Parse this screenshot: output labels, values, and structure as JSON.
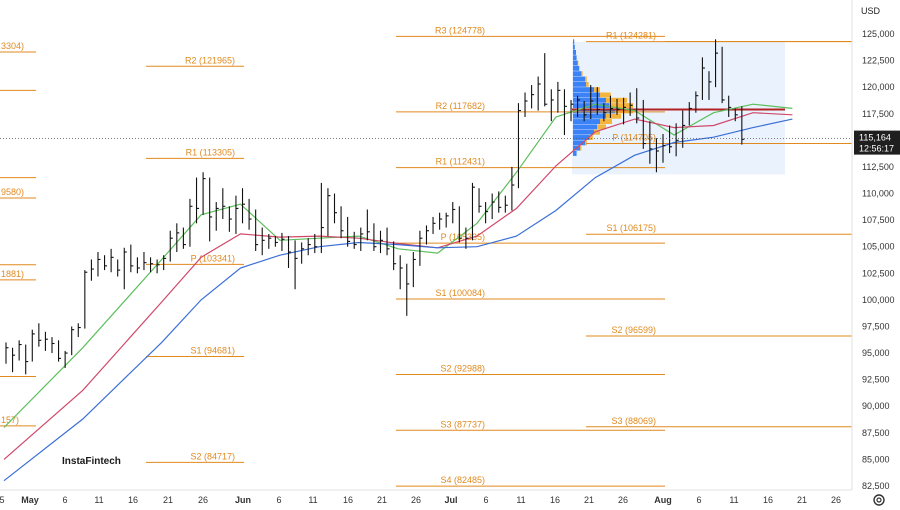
{
  "currency_label": "USD",
  "watermark": "InstaFintech",
  "settings_icon": "gear-icon",
  "current_price": {
    "value": "115,164",
    "countdown": "12:56:17",
    "price": 115164
  },
  "colors": {
    "pivot": "#e08a1e",
    "ma_fast": "#5cbf5c",
    "ma_mid": "#d0486a",
    "ma_slow": "#3a6fd8",
    "candle": "#111111",
    "profile_blue": "#3b82f6",
    "profile_orange": "#f5b43c",
    "poc": "#b22222",
    "box": "#dbeafb"
  },
  "chart_data": {
    "type": "ohlc",
    "y_ticks": [
      "125,000",
      "122,500",
      "120,000",
      "117,500",
      "115,000",
      "112,500",
      "110,000",
      "107,500",
      "105,000",
      "102,500",
      "100,000",
      "97,500",
      "95,000",
      "92,500",
      "90,000",
      "87,500",
      "85,000",
      "82,500"
    ],
    "ylim": [
      82000,
      127000
    ],
    "x_ticks": [
      "5",
      "May",
      "6",
      "11",
      "16",
      "21",
      "26",
      "Jun",
      "6",
      "11",
      "16",
      "21",
      "26",
      "Jul",
      "6",
      "11",
      "16",
      "21",
      "26",
      "Aug",
      "6",
      "11",
      "16",
      "21",
      "26"
    ],
    "month_ticks": [
      "May",
      "Jun",
      "Jul",
      "Aug"
    ],
    "pivot_levels": [
      {
        "label": "3304)",
        "value": 123304,
        "period": "may-left"
      },
      {
        "label": "",
        "value": 119700,
        "period": "may-left"
      },
      {
        "label": "",
        "value": 111500,
        "period": "may-left"
      },
      {
        "label": "9580)",
        "value": 109580,
        "period": "may-left"
      },
      {
        "label": "",
        "value": 103300,
        "period": "may-left"
      },
      {
        "label": "1881)",
        "value": 101881,
        "period": "may-left"
      },
      {
        "label": "",
        "value": 92800,
        "period": "may-left"
      },
      {
        "label": "157)",
        "value": 88157,
        "period": "may-left"
      },
      {
        "label": "R2 (121965)",
        "value": 121965,
        "period": "jun"
      },
      {
        "label": "R1 (113305)",
        "value": 113305,
        "period": "jun"
      },
      {
        "label": "P (103341)",
        "value": 103341,
        "period": "jun"
      },
      {
        "label": "S1 (94681)",
        "value": 94681,
        "period": "jun"
      },
      {
        "label": "S2 (84717)",
        "value": 84717,
        "period": "jun"
      },
      {
        "label": "R3 (124778)",
        "value": 124778,
        "period": "jul"
      },
      {
        "label": "R2 (117682)",
        "value": 117682,
        "period": "jul"
      },
      {
        "label": "R1 (112431)",
        "value": 112431,
        "period": "jul"
      },
      {
        "label": "P (105335)",
        "value": 105335,
        "period": "jul"
      },
      {
        "label": "S1 (100084)",
        "value": 100084,
        "period": "jul"
      },
      {
        "label": "S2 (92988)",
        "value": 92988,
        "period": "jul"
      },
      {
        "label": "S3 (87737)",
        "value": 87737,
        "period": "jul"
      },
      {
        "label": "S4 (82485)",
        "value": 82485,
        "period": "jul"
      },
      {
        "label": "",
        "value": 124300,
        "period": "aug-full"
      },
      {
        "label": "R1 (124281)",
        "value": 124281,
        "period": "aug"
      },
      {
        "label": "P (114705)",
        "value": 114705,
        "period": "aug"
      },
      {
        "label": "S1 (106175)",
        "value": 106175,
        "period": "aug"
      },
      {
        "label": "S2 (96599)",
        "value": 96599,
        "period": "aug"
      },
      {
        "label": "S3 (88069)",
        "value": 88069,
        "period": "aug"
      }
    ],
    "bars": [
      [
        96000,
        94000,
        95500
      ],
      [
        95500,
        93200,
        94800
      ],
      [
        96200,
        94300,
        95800
      ],
      [
        95800,
        93000,
        94200
      ],
      [
        97200,
        94200,
        96800
      ],
      [
        97800,
        95600,
        96200
      ],
      [
        97000,
        95200,
        96300
      ],
      [
        96500,
        95000,
        95900
      ],
      [
        96200,
        94200,
        94500
      ],
      [
        95200,
        93600,
        95000
      ],
      [
        97500,
        94800,
        97200
      ],
      [
        97800,
        96500,
        97400
      ],
      [
        102800,
        97300,
        102600
      ],
      [
        103800,
        101800,
        102900
      ],
      [
        104500,
        102200,
        103800
      ],
      [
        104200,
        102800,
        103200
      ],
      [
        104800,
        102600,
        104000
      ],
      [
        103800,
        102200,
        102800
      ],
      [
        104900,
        101000,
        104500
      ],
      [
        105200,
        102600,
        103200
      ],
      [
        104000,
        102500,
        103000
      ],
      [
        104500,
        102800,
        103500
      ],
      [
        104000,
        102600,
        103400
      ],
      [
        103800,
        102500,
        103300
      ],
      [
        104200,
        102800,
        103900
      ],
      [
        106500,
        103600,
        105800
      ],
      [
        107200,
        104500,
        106300
      ],
      [
        106800,
        104800,
        105200
      ],
      [
        109500,
        105000,
        108800
      ],
      [
        111500,
        107200,
        108600
      ],
      [
        112000,
        108000,
        111400
      ],
      [
        111500,
        105500,
        107800
      ],
      [
        109200,
        106500,
        108600
      ],
      [
        110500,
        107600,
        108800
      ],
      [
        108800,
        106400,
        107600
      ],
      [
        109800,
        106200,
        108600
      ],
      [
        110500,
        107200,
        109000
      ],
      [
        109500,
        106600,
        107600
      ],
      [
        108500,
        104600,
        105200
      ],
      [
        106800,
        104200,
        105600
      ],
      [
        106200,
        104800,
        105800
      ],
      [
        106000,
        105000,
        105400
      ],
      [
        106300,
        104600,
        105700
      ],
      [
        106000,
        103000,
        104500
      ],
      [
        105600,
        101000,
        103900
      ],
      [
        105400,
        103400,
        104800
      ],
      [
        105800,
        104200,
        105200
      ],
      [
        106200,
        104400,
        105000
      ],
      [
        111000,
        104400,
        106800
      ],
      [
        110500,
        106000,
        109800
      ],
      [
        110000,
        107200,
        108200
      ],
      [
        108800,
        105800,
        106500
      ],
      [
        107800,
        105000,
        105500
      ],
      [
        106400,
        104800,
        105200
      ],
      [
        106800,
        104600,
        106200
      ],
      [
        108500,
        105600,
        106400
      ],
      [
        107200,
        104600,
        105000
      ],
      [
        106500,
        104400,
        105600
      ],
      [
        106800,
        104200,
        104800
      ],
      [
        105500,
        102800,
        103400
      ],
      [
        104200,
        101000,
        103000
      ],
      [
        103400,
        98500,
        101500
      ],
      [
        104500,
        101200,
        103800
      ],
      [
        106500,
        103200,
        105800
      ],
      [
        107000,
        105200,
        106500
      ],
      [
        107800,
        106200,
        107200
      ],
      [
        108200,
        106600,
        107600
      ],
      [
        108200,
        106800,
        107900
      ],
      [
        109200,
        107200,
        108500
      ],
      [
        108800,
        105400,
        105800
      ],
      [
        106800,
        104800,
        105800
      ],
      [
        111000,
        105600,
        110600
      ],
      [
        110500,
        108200,
        108800
      ],
      [
        109200,
        107200,
        108300
      ],
      [
        110000,
        107600,
        109200
      ],
      [
        110200,
        108200,
        108700
      ],
      [
        109800,
        108200,
        108900
      ],
      [
        112500,
        108400,
        110800
      ],
      [
        118500,
        110500,
        117800
      ],
      [
        119500,
        117200,
        118700
      ],
      [
        120200,
        118000,
        119300
      ],
      [
        121000,
        117800,
        120300
      ],
      [
        123200,
        118200,
        118400
      ],
      [
        119800,
        116800,
        118800
      ],
      [
        120500,
        117600,
        119700
      ],
      [
        119800,
        115500,
        118200
      ],
      [
        118800,
        116800,
        118400
      ],
      [
        119200,
        117200,
        118800
      ],
      [
        118700,
        116800,
        117400
      ],
      [
        120200,
        117000,
        118700
      ],
      [
        120000,
        117400,
        117900
      ],
      [
        118500,
        116800,
        117600
      ],
      [
        119200,
        117100,
        118000
      ],
      [
        118900,
        117400,
        117900
      ],
      [
        119000,
        116500,
        118100
      ],
      [
        119500,
        117300,
        118300
      ],
      [
        119900,
        116600,
        117100
      ],
      [
        118800,
        114200,
        114700
      ],
      [
        116800,
        112800,
        114200
      ],
      [
        115200,
        112000,
        114000
      ],
      [
        115600,
        112900,
        114500
      ],
      [
        116400,
        113800,
        114400
      ],
      [
        116600,
        113500,
        115000
      ],
      [
        117800,
        114300,
        116400
      ],
      [
        118600,
        116400,
        118000
      ],
      [
        119600,
        117600,
        119200
      ],
      [
        122800,
        118800,
        121800
      ],
      [
        121500,
        118800,
        120500
      ],
      [
        124500,
        120000,
        123200
      ],
      [
        123800,
        118500,
        118800
      ],
      [
        119200,
        117200,
        118100
      ],
      [
        118000,
        116800,
        117400
      ],
      [
        118200,
        114600,
        115100
      ]
    ],
    "ma_fast": [
      [
        0,
        88000
      ],
      [
        12,
        95500
      ],
      [
        24,
        103800
      ],
      [
        30,
        108000
      ],
      [
        36,
        109000
      ],
      [
        42,
        105600
      ],
      [
        48,
        105800
      ],
      [
        54,
        106000
      ],
      [
        60,
        104800
      ],
      [
        66,
        104400
      ],
      [
        72,
        107200
      ],
      [
        78,
        112000
      ],
      [
        84,
        117200
      ],
      [
        90,
        118400
      ],
      [
        96,
        117800
      ],
      [
        102,
        115500
      ],
      [
        108,
        117600
      ],
      [
        114,
        118400
      ],
      [
        120,
        118000
      ]
    ],
    "ma_mid": [
      [
        0,
        85000
      ],
      [
        12,
        91500
      ],
      [
        24,
        99800
      ],
      [
        30,
        104000
      ],
      [
        36,
        106200
      ],
      [
        42,
        105900
      ],
      [
        48,
        106000
      ],
      [
        54,
        105800
      ],
      [
        60,
        105300
      ],
      [
        66,
        104900
      ],
      [
        72,
        106000
      ],
      [
        78,
        108600
      ],
      [
        84,
        112600
      ],
      [
        90,
        115800
      ],
      [
        96,
        117000
      ],
      [
        102,
        116200
      ],
      [
        108,
        116400
      ],
      [
        114,
        117600
      ],
      [
        120,
        117400
      ]
    ],
    "ma_slow": [
      [
        0,
        83000
      ],
      [
        12,
        88800
      ],
      [
        24,
        96000
      ],
      [
        30,
        100000
      ],
      [
        36,
        103000
      ],
      [
        42,
        104200
      ],
      [
        48,
        105000
      ],
      [
        54,
        105400
      ],
      [
        60,
        105200
      ],
      [
        66,
        104900
      ],
      [
        72,
        105000
      ],
      [
        78,
        106000
      ],
      [
        84,
        108400
      ],
      [
        90,
        111500
      ],
      [
        96,
        113600
      ],
      [
        102,
        114800
      ],
      [
        108,
        115300
      ],
      [
        114,
        116200
      ],
      [
        120,
        117000
      ]
    ],
    "volume_profile": [
      {
        "price": 124250,
        "blue": 0.02,
        "orange": 0.0
      },
      {
        "price": 123750,
        "blue": 0.03,
        "orange": 0.0
      },
      {
        "price": 123250,
        "blue": 0.05,
        "orange": 0.0
      },
      {
        "price": 122750,
        "blue": 0.06,
        "orange": 0.0
      },
      {
        "price": 122250,
        "blue": 0.08,
        "orange": 0.01
      },
      {
        "price": 121750,
        "blue": 0.1,
        "orange": 0.01
      },
      {
        "price": 121250,
        "blue": 0.14,
        "orange": 0.02
      },
      {
        "price": 120750,
        "blue": 0.2,
        "orange": 0.03
      },
      {
        "price": 120250,
        "blue": 0.22,
        "orange": 0.04
      },
      {
        "price": 119750,
        "blue": 0.35,
        "orange": 0.1
      },
      {
        "price": 119250,
        "blue": 0.45,
        "orange": 0.18
      },
      {
        "price": 118750,
        "blue": 0.55,
        "orange": 0.35
      },
      {
        "price": 118250,
        "blue": 0.6,
        "orange": 0.4
      },
      {
        "price": 117750,
        "blue": 0.7,
        "orange": 0.3
      },
      {
        "price": 117250,
        "blue": 0.55,
        "orange": 0.25
      },
      {
        "price": 116750,
        "blue": 0.45,
        "orange": 0.2
      },
      {
        "price": 116250,
        "blue": 0.4,
        "orange": 0.15
      },
      {
        "price": 115750,
        "blue": 0.35,
        "orange": 0.1
      },
      {
        "price": 115250,
        "blue": 0.28,
        "orange": 0.05
      },
      {
        "price": 114750,
        "blue": 0.2,
        "orange": 0.03
      },
      {
        "price": 114250,
        "blue": 0.12,
        "orange": 0.02
      },
      {
        "price": 113750,
        "blue": 0.06,
        "orange": 0.0
      }
    ],
    "poc_price": 117900
  }
}
